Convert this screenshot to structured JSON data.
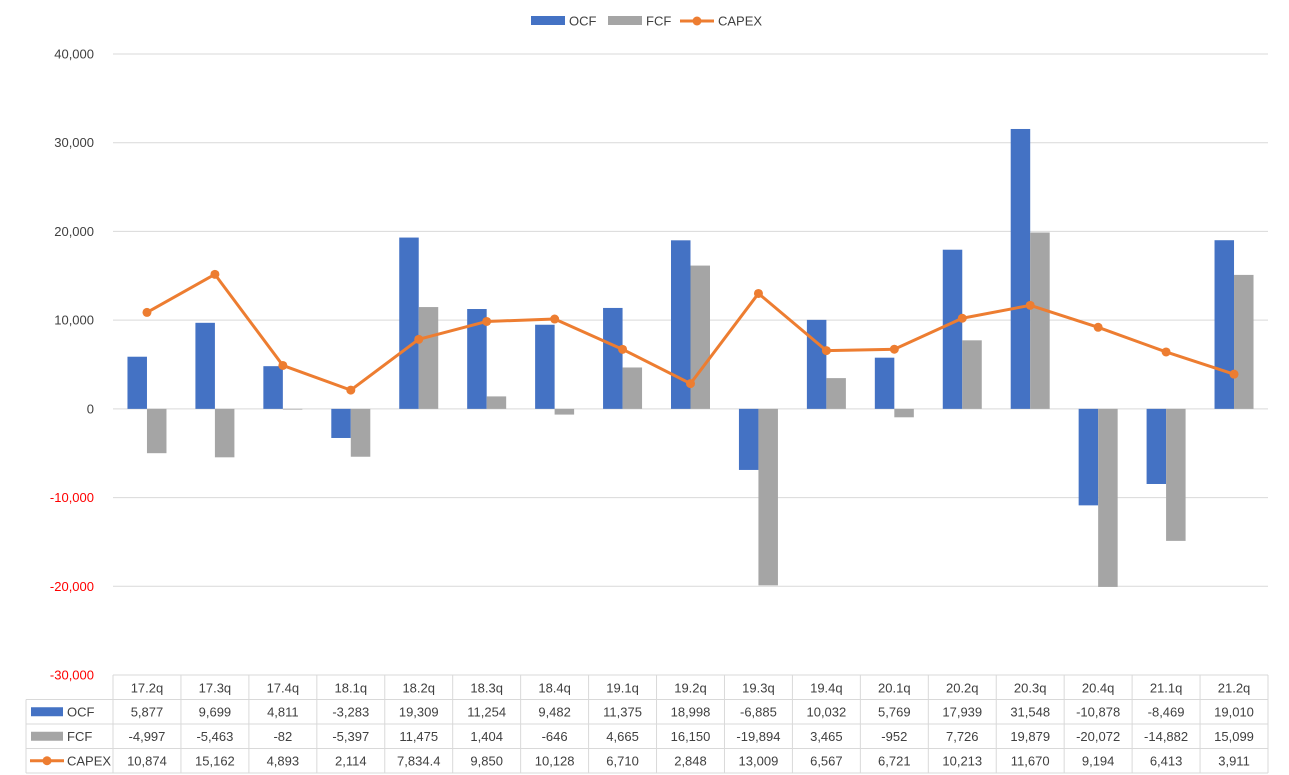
{
  "chart_data": {
    "type": "bar",
    "categories": [
      "17.2q",
      "17.3q",
      "17.4q",
      "18.1q",
      "18.2q",
      "18.3q",
      "18.4q",
      "19.1q",
      "19.2q",
      "19.3q",
      "19.4q",
      "20.1q",
      "20.2q",
      "20.3q",
      "20.4q",
      "21.1q",
      "21.2q"
    ],
    "series": [
      {
        "name": "OCF",
        "type": "bar",
        "color": "#4472C4",
        "values": [
          5877,
          9699,
          4811,
          -3283,
          19309,
          11254,
          9482,
          11375,
          18998,
          -6885,
          10032,
          5769,
          17939,
          31548,
          -10878,
          -8469,
          19010
        ],
        "labels": [
          "5,877",
          "9,699",
          "4,811",
          "-3,283",
          "19,309",
          "11,254",
          "9,482",
          "11,375",
          "18,998",
          "-6,885",
          "10,032",
          "5,769",
          "17,939",
          "31,548",
          "-10,878",
          "-8,469",
          "19,010"
        ]
      },
      {
        "name": "FCF",
        "type": "bar",
        "color": "#A5A5A5",
        "values": [
          -4997,
          -5463,
          -82,
          -5397,
          11475,
          1404,
          -646,
          4665,
          16150,
          -19894,
          3465,
          -952,
          7726,
          19879,
          -20072,
          -14882,
          15099
        ],
        "labels": [
          "-4,997",
          "-5,463",
          "-82",
          "-5,397",
          "11,475",
          "1,404",
          "-646",
          "4,665",
          "16,150",
          "-19,894",
          "3,465",
          "-952",
          "7,726",
          "19,879",
          "-20,072",
          "-14,882",
          "15,099"
        ]
      },
      {
        "name": "CAPEX",
        "type": "line",
        "color": "#ED7D31",
        "values": [
          10874,
          15162,
          4893,
          2114,
          7834.4,
          9850,
          10128,
          6710,
          2848,
          13009,
          6567,
          6721,
          10213,
          11670,
          9194,
          6413,
          3911
        ],
        "labels": [
          "10,874",
          "15,162",
          "4,893",
          "2,114",
          "7,834.4",
          "9,850",
          "10,128",
          "6,710",
          "2,848",
          "13,009",
          "6,567",
          "6,721",
          "10,213",
          "11,670",
          "9,194",
          "6,413",
          "3,911"
        ]
      }
    ],
    "y_ticks": [
      {
        "value": 40000,
        "label": "40,000"
      },
      {
        "value": 30000,
        "label": "30,000"
      },
      {
        "value": 20000,
        "label": "20,000"
      },
      {
        "value": 10000,
        "label": "10,000"
      },
      {
        "value": 0,
        "label": "0"
      },
      {
        "value": -10000,
        "label": "-10,000"
      },
      {
        "value": -20000,
        "label": "-20,000"
      },
      {
        "value": -30000,
        "label": "-30,000"
      }
    ],
    "ylim": [
      -30000,
      40000
    ],
    "negative_tick_color": "#FF0000",
    "grid": true,
    "legend_position": "top",
    "data_table": true
  }
}
